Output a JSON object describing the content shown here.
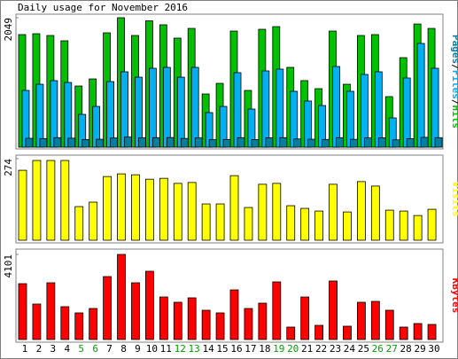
{
  "chart_data": [
    {
      "type": "bar",
      "title": "Daily usage for November 2016",
      "categories": [
        "1",
        "2",
        "3",
        "4",
        "5",
        "6",
        "7",
        "8",
        "9",
        "10",
        "11",
        "12",
        "13",
        "14",
        "15",
        "16",
        "17",
        "18",
        "19",
        "20",
        "21",
        "22",
        "23",
        "24",
        "25",
        "26",
        "27",
        "28",
        "29",
        "30"
      ],
      "weekends": [
        "5",
        "6",
        "12",
        "13",
        "19",
        "20",
        "26",
        "27"
      ],
      "weekend_color": "#00a000",
      "ylim": [
        0,
        2049
      ],
      "yticks": [
        2049
      ],
      "label_separator": "/",
      "series": [
        {
          "name": "Hits",
          "color": "#00c000",
          "values": [
            1782,
            1796,
            1768,
            1684,
            968,
            1080,
            1810,
            2049,
            1768,
            2000,
            1937,
            1726,
            1880,
            842,
            1010,
            1838,
            898,
            1866,
            1908,
            1263,
            1053,
            926,
            1838,
            996,
            1768,
            1782,
            800,
            1417,
            1950,
            1880
          ]
        },
        {
          "name": "Files",
          "color": "#00b0f0",
          "values": [
            898,
            996,
            1053,
            1024,
            519,
            645,
            1038,
            1193,
            1108,
            1249,
            1263,
            1108,
            1263,
            547,
            645,
            1179,
            603,
            1207,
            1235,
            884,
            730,
            659,
            1277,
            884,
            1151,
            1193,
            463,
            1095,
            1642,
            1249
          ]
        },
        {
          "name": "Pages",
          "color": "#0080a0",
          "values": [
            140,
            135,
            150,
            142,
            120,
            125,
            145,
            160,
            148,
            150,
            152,
            138,
            146,
            118,
            122,
            150,
            120,
            148,
            150,
            130,
            126,
            122,
            150,
            124,
            146,
            148,
            115,
            135,
            155,
            150
          ]
        }
      ]
    },
    {
      "type": "bar",
      "ylim": [
        0,
        274
      ],
      "yticks": [
        274
      ],
      "series": [
        {
          "name": "Visits",
          "color": "#ffff00",
          "values": [
            235,
            268,
            268,
            268,
            113,
            128,
            214,
            223,
            220,
            205,
            208,
            191,
            194,
            122,
            122,
            217,
            110,
            188,
            191,
            116,
            107,
            98,
            188,
            95,
            197,
            182,
            101,
            98,
            83,
            104
          ]
        }
      ]
    },
    {
      "type": "bar",
      "ylim": [
        0,
        4101
      ],
      "yticks": [
        4101
      ],
      "series": [
        {
          "name": "KBytes",
          "color": "#ff0000",
          "values": [
            2691,
            1709,
            2734,
            1581,
            1282,
            1495,
            3033,
            4101,
            2734,
            3289,
            2050,
            1794,
            2008,
            1410,
            1282,
            2392,
            1495,
            1751,
            2777,
            598,
            2050,
            683,
            2819,
            641,
            1794,
            1837,
            1410,
            598,
            769,
            726
          ]
        }
      ]
    }
  ]
}
